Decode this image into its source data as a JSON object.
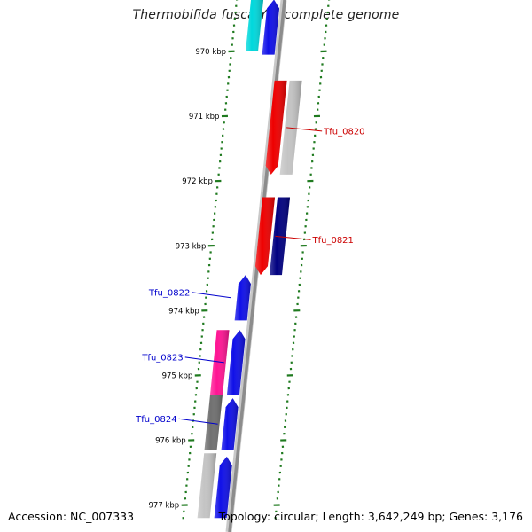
{
  "title": "Thermobifida fusca YX, complete genome",
  "footer": {
    "accession": "Accession: NC_007333",
    "summary": "Topology: circular; Length: 3,642,249 bp; Genes: 3,176"
  },
  "colors": {
    "backbone": "#8c8c8c",
    "tick": "#1f7a1f",
    "label_reverse": "#0000cc",
    "label_forward": "#cc0000"
  },
  "chart_data": {
    "type": "circular-genome-map-zoom",
    "organism": "Thermobifida fusca YX",
    "accession": "NC_007333",
    "topology": "circular",
    "length_bp": 3642249,
    "gene_count": 3176,
    "visible_range_kbp": [
      969.2,
      977.2
    ],
    "position_labels": [
      "970 kbp",
      "971 kbp",
      "972 kbp",
      "973 kbp",
      "974 kbp",
      "975 kbp",
      "976 kbp",
      "977 kbp"
    ],
    "genes": [
      {
        "id": "g-cyan-top",
        "strand": "reverse",
        "ring": 2,
        "start_kbp": 969.2,
        "end_kbp": 970.0,
        "color": "#00d8dc",
        "label": ""
      },
      {
        "id": "g-blue-top",
        "strand": "reverse",
        "ring": 1,
        "start_kbp": 969.2,
        "end_kbp": 970.05,
        "color": "#1010e8",
        "label": "",
        "arrow": "up"
      },
      {
        "id": "g-red-0820",
        "strand": "forward",
        "ring": 1,
        "start_kbp": 970.45,
        "end_kbp": 971.9,
        "color": "#ee0000",
        "label": "Tfu_0820",
        "arrow": "down"
      },
      {
        "id": "g-gray-0820",
        "strand": "forward",
        "ring": 2,
        "start_kbp": 970.45,
        "end_kbp": 971.9,
        "color": "#c4c4c4",
        "label": ""
      },
      {
        "id": "g-red-0821",
        "strand": "forward",
        "ring": 1,
        "start_kbp": 972.25,
        "end_kbp": 973.45,
        "color": "#ee0000",
        "label": "Tfu_0821",
        "arrow": "down"
      },
      {
        "id": "g-navy-0821",
        "strand": "forward",
        "ring": 2,
        "start_kbp": 972.25,
        "end_kbp": 973.45,
        "color": "#000080",
        "label": ""
      },
      {
        "id": "g-blue-0822",
        "strand": "reverse",
        "ring": 1,
        "start_kbp": 973.45,
        "end_kbp": 974.15,
        "color": "#1010e8",
        "label": "Tfu_0822",
        "arrow": "up"
      },
      {
        "id": "g-blue-0823",
        "strand": "reverse",
        "ring": 1,
        "start_kbp": 974.3,
        "end_kbp": 975.3,
        "color": "#1010e8",
        "label": "Tfu_0823",
        "arrow": "up"
      },
      {
        "id": "g-pink-0823",
        "strand": "reverse",
        "ring": 2,
        "start_kbp": 974.3,
        "end_kbp": 975.3,
        "color": "#ff1493",
        "label": ""
      },
      {
        "id": "g-blue-0824",
        "strand": "reverse",
        "ring": 1,
        "start_kbp": 975.35,
        "end_kbp": 976.15,
        "color": "#1010e8",
        "label": "Tfu_0824",
        "arrow": "up"
      },
      {
        "id": "g-darkgray-0824",
        "strand": "reverse",
        "ring": 2,
        "start_kbp": 975.3,
        "end_kbp": 976.15,
        "color": "#707070",
        "label": ""
      },
      {
        "id": "g-blue-bottom",
        "strand": "reverse",
        "ring": 1,
        "start_kbp": 976.25,
        "end_kbp": 977.2,
        "color": "#1010e8",
        "label": "",
        "arrow": "up"
      },
      {
        "id": "g-lightgray-bottom",
        "strand": "reverse",
        "ring": 2,
        "start_kbp": 976.2,
        "end_kbp": 977.2,
        "color": "#c4c4c4",
        "label": ""
      }
    ]
  }
}
